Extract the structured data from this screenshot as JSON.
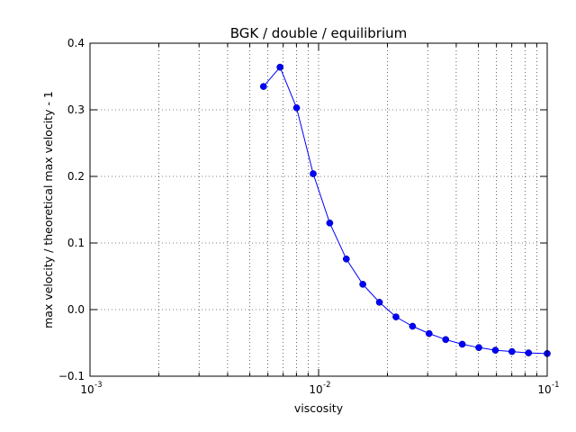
{
  "chart_data": {
    "type": "line",
    "title": "BGK / double / equilibrium",
    "xlabel": "viscosity",
    "ylabel": "max velocity / theoretical max velocity - 1",
    "xscale": "log",
    "xlim": [
      0.001,
      0.1
    ],
    "ylim": [
      -0.1,
      0.4
    ],
    "grid": true,
    "x_ticks": [
      {
        "base": "10",
        "exp": "-3"
      },
      {
        "base": "10",
        "exp": "-2"
      },
      {
        "base": "10",
        "exp": "-1"
      }
    ],
    "y_ticks": [
      "−0.1",
      "0.0",
      "0.1",
      "0.2",
      "0.3",
      "0.4"
    ],
    "y_tick_values": [
      -0.1,
      0.0,
      0.1,
      0.2,
      0.3,
      0.4
    ],
    "series": [
      {
        "color": "#0000ff",
        "marker": "circle",
        "x": [
          0.00574,
          0.00678,
          0.00801,
          0.00947,
          0.01119,
          0.01322,
          0.01561,
          0.01845,
          0.0218,
          0.02576,
          0.03044,
          0.03597,
          0.0425,
          0.05022,
          0.05934,
          0.07012,
          0.08286,
          0.1
        ],
        "y": [
          0.335,
          0.364,
          0.303,
          0.204,
          0.13,
          0.076,
          0.038,
          0.011,
          -0.011,
          -0.025,
          -0.036,
          -0.045,
          -0.052,
          -0.057,
          -0.061,
          -0.063,
          -0.065,
          -0.066
        ]
      }
    ]
  }
}
